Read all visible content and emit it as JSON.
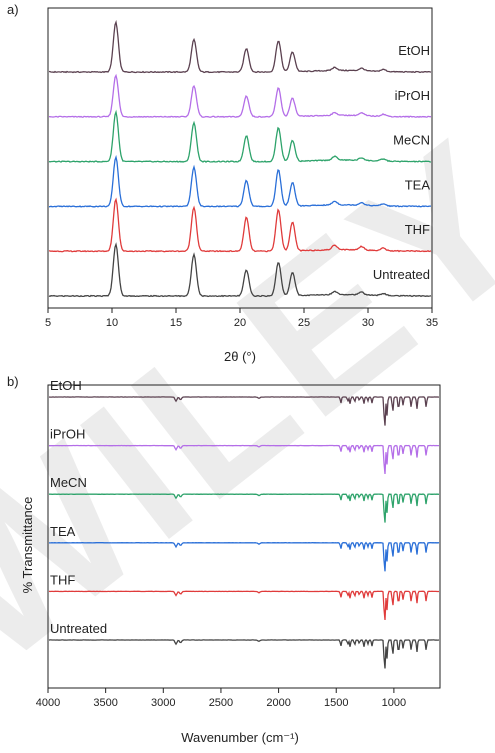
{
  "figure": {
    "watermark": "WILEY",
    "panels": [
      "a)",
      "b)"
    ]
  },
  "chart_data": [
    {
      "type": "line",
      "panel_label": "a)",
      "xlabel": "2θ (°)",
      "ylabel": "",
      "xlim": [
        5,
        35
      ],
      "xticks": [
        5,
        10,
        15,
        20,
        25,
        30,
        35
      ],
      "yticks_shown": false,
      "peaks_2theta": [
        10.3,
        16.4,
        20.5,
        23.0,
        24.1,
        27.4,
        29.5,
        31.2
      ],
      "series": [
        {
          "name": "EtOH",
          "color": "#5b4150",
          "peak_heights": [
            0.95,
            0.62,
            0.45,
            0.6,
            0.38,
            0.06,
            0.05,
            0.04
          ]
        },
        {
          "name": "iPrOH",
          "color": "#b46ee8",
          "peak_heights": [
            0.8,
            0.6,
            0.4,
            0.55,
            0.35,
            0.05,
            0.05,
            0.04
          ]
        },
        {
          "name": "MeCN",
          "color": "#2ea36b",
          "peak_heights": [
            0.95,
            0.75,
            0.5,
            0.65,
            0.4,
            0.07,
            0.05,
            0.04
          ]
        },
        {
          "name": "TEA",
          "color": "#2a6fd8",
          "peak_heights": [
            0.95,
            0.75,
            0.5,
            0.7,
            0.45,
            0.07,
            0.05,
            0.04
          ]
        },
        {
          "name": "THF",
          "color": "#e03b3b",
          "peak_heights": [
            1.0,
            0.85,
            0.65,
            0.8,
            0.55,
            0.09,
            0.07,
            0.05
          ]
        },
        {
          "name": "Untreated",
          "color": "#444444",
          "peak_heights": [
            1.0,
            0.8,
            0.5,
            0.65,
            0.45,
            0.06,
            0.05,
            0.04
          ]
        }
      ]
    },
    {
      "type": "line",
      "panel_label": "b)",
      "xlabel": "Wavenumber (cm⁻¹)",
      "ylabel": "% Transmittance",
      "xlim": [
        4000,
        600
      ],
      "x_reversed": true,
      "xticks": [
        4000,
        3500,
        3000,
        2500,
        2000,
        1500,
        1000
      ],
      "yticks_shown": false,
      "bands_cm1": [
        2890,
        2850,
        2170,
        1460,
        1400,
        1380,
        1340,
        1300,
        1260,
        1225,
        1190,
        1080,
        1060,
        1010,
        960,
        920,
        850,
        800,
        720
      ],
      "series": [
        {
          "name": "EtOH",
          "color": "#5b4150",
          "band_depths": [
            0.12,
            0.08,
            0.04,
            0.18,
            0.12,
            0.2,
            0.15,
            0.1,
            0.2,
            0.12,
            0.18,
            1.0,
            0.55,
            0.45,
            0.4,
            0.25,
            0.3,
            0.35,
            0.3
          ]
        },
        {
          "name": "iPrOH",
          "color": "#b46ee8",
          "band_depths": [
            0.12,
            0.08,
            0.04,
            0.18,
            0.12,
            0.2,
            0.15,
            0.1,
            0.2,
            0.12,
            0.18,
            1.0,
            0.55,
            0.45,
            0.4,
            0.25,
            0.3,
            0.35,
            0.3
          ]
        },
        {
          "name": "MeCN",
          "color": "#2ea36b",
          "band_depths": [
            0.12,
            0.08,
            0.04,
            0.18,
            0.12,
            0.2,
            0.15,
            0.1,
            0.2,
            0.12,
            0.18,
            1.0,
            0.55,
            0.45,
            0.4,
            0.25,
            0.3,
            0.35,
            0.3
          ]
        },
        {
          "name": "TEA",
          "color": "#2a6fd8",
          "band_depths": [
            0.12,
            0.08,
            0.04,
            0.18,
            0.12,
            0.2,
            0.15,
            0.1,
            0.2,
            0.12,
            0.18,
            1.0,
            0.55,
            0.45,
            0.4,
            0.25,
            0.3,
            0.35,
            0.3
          ]
        },
        {
          "name": "THF",
          "color": "#e03b3b",
          "band_depths": [
            0.12,
            0.08,
            0.04,
            0.18,
            0.12,
            0.2,
            0.15,
            0.1,
            0.2,
            0.12,
            0.18,
            1.0,
            0.55,
            0.45,
            0.4,
            0.25,
            0.3,
            0.35,
            0.3
          ]
        },
        {
          "name": "Untreated",
          "color": "#444444",
          "band_depths": [
            0.12,
            0.08,
            0.04,
            0.18,
            0.12,
            0.2,
            0.15,
            0.1,
            0.2,
            0.12,
            0.18,
            1.0,
            0.55,
            0.45,
            0.4,
            0.25,
            0.3,
            0.35,
            0.3
          ]
        }
      ]
    }
  ]
}
